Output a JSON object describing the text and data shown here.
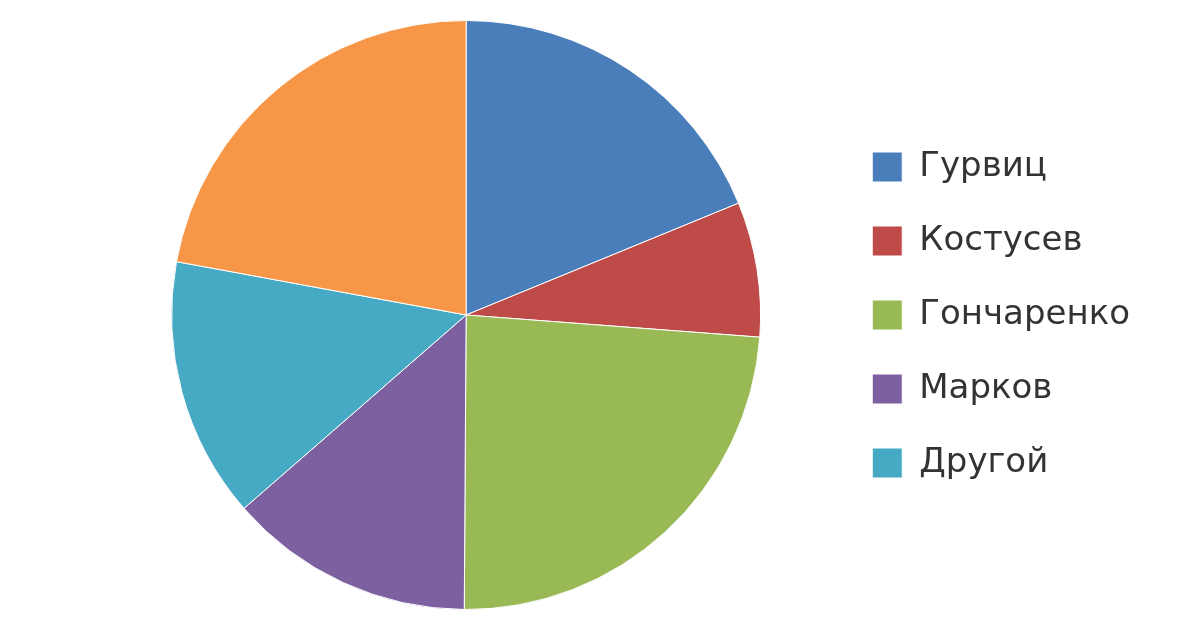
{
  "chart_data": {
    "type": "pie",
    "categories": [
      "Гурвиц",
      "Костусев",
      "Гончаренко",
      "Марков",
      "Другой",
      null
    ],
    "values": [
      18.8,
      7.4,
      23.9,
      13.5,
      14.3,
      22.1
    ],
    "colors": [
      "#4a7ebb",
      "#be4b48",
      "#98b954",
      "#7d60a0",
      "#46aac5",
      "#f79646"
    ],
    "legend": "right"
  }
}
